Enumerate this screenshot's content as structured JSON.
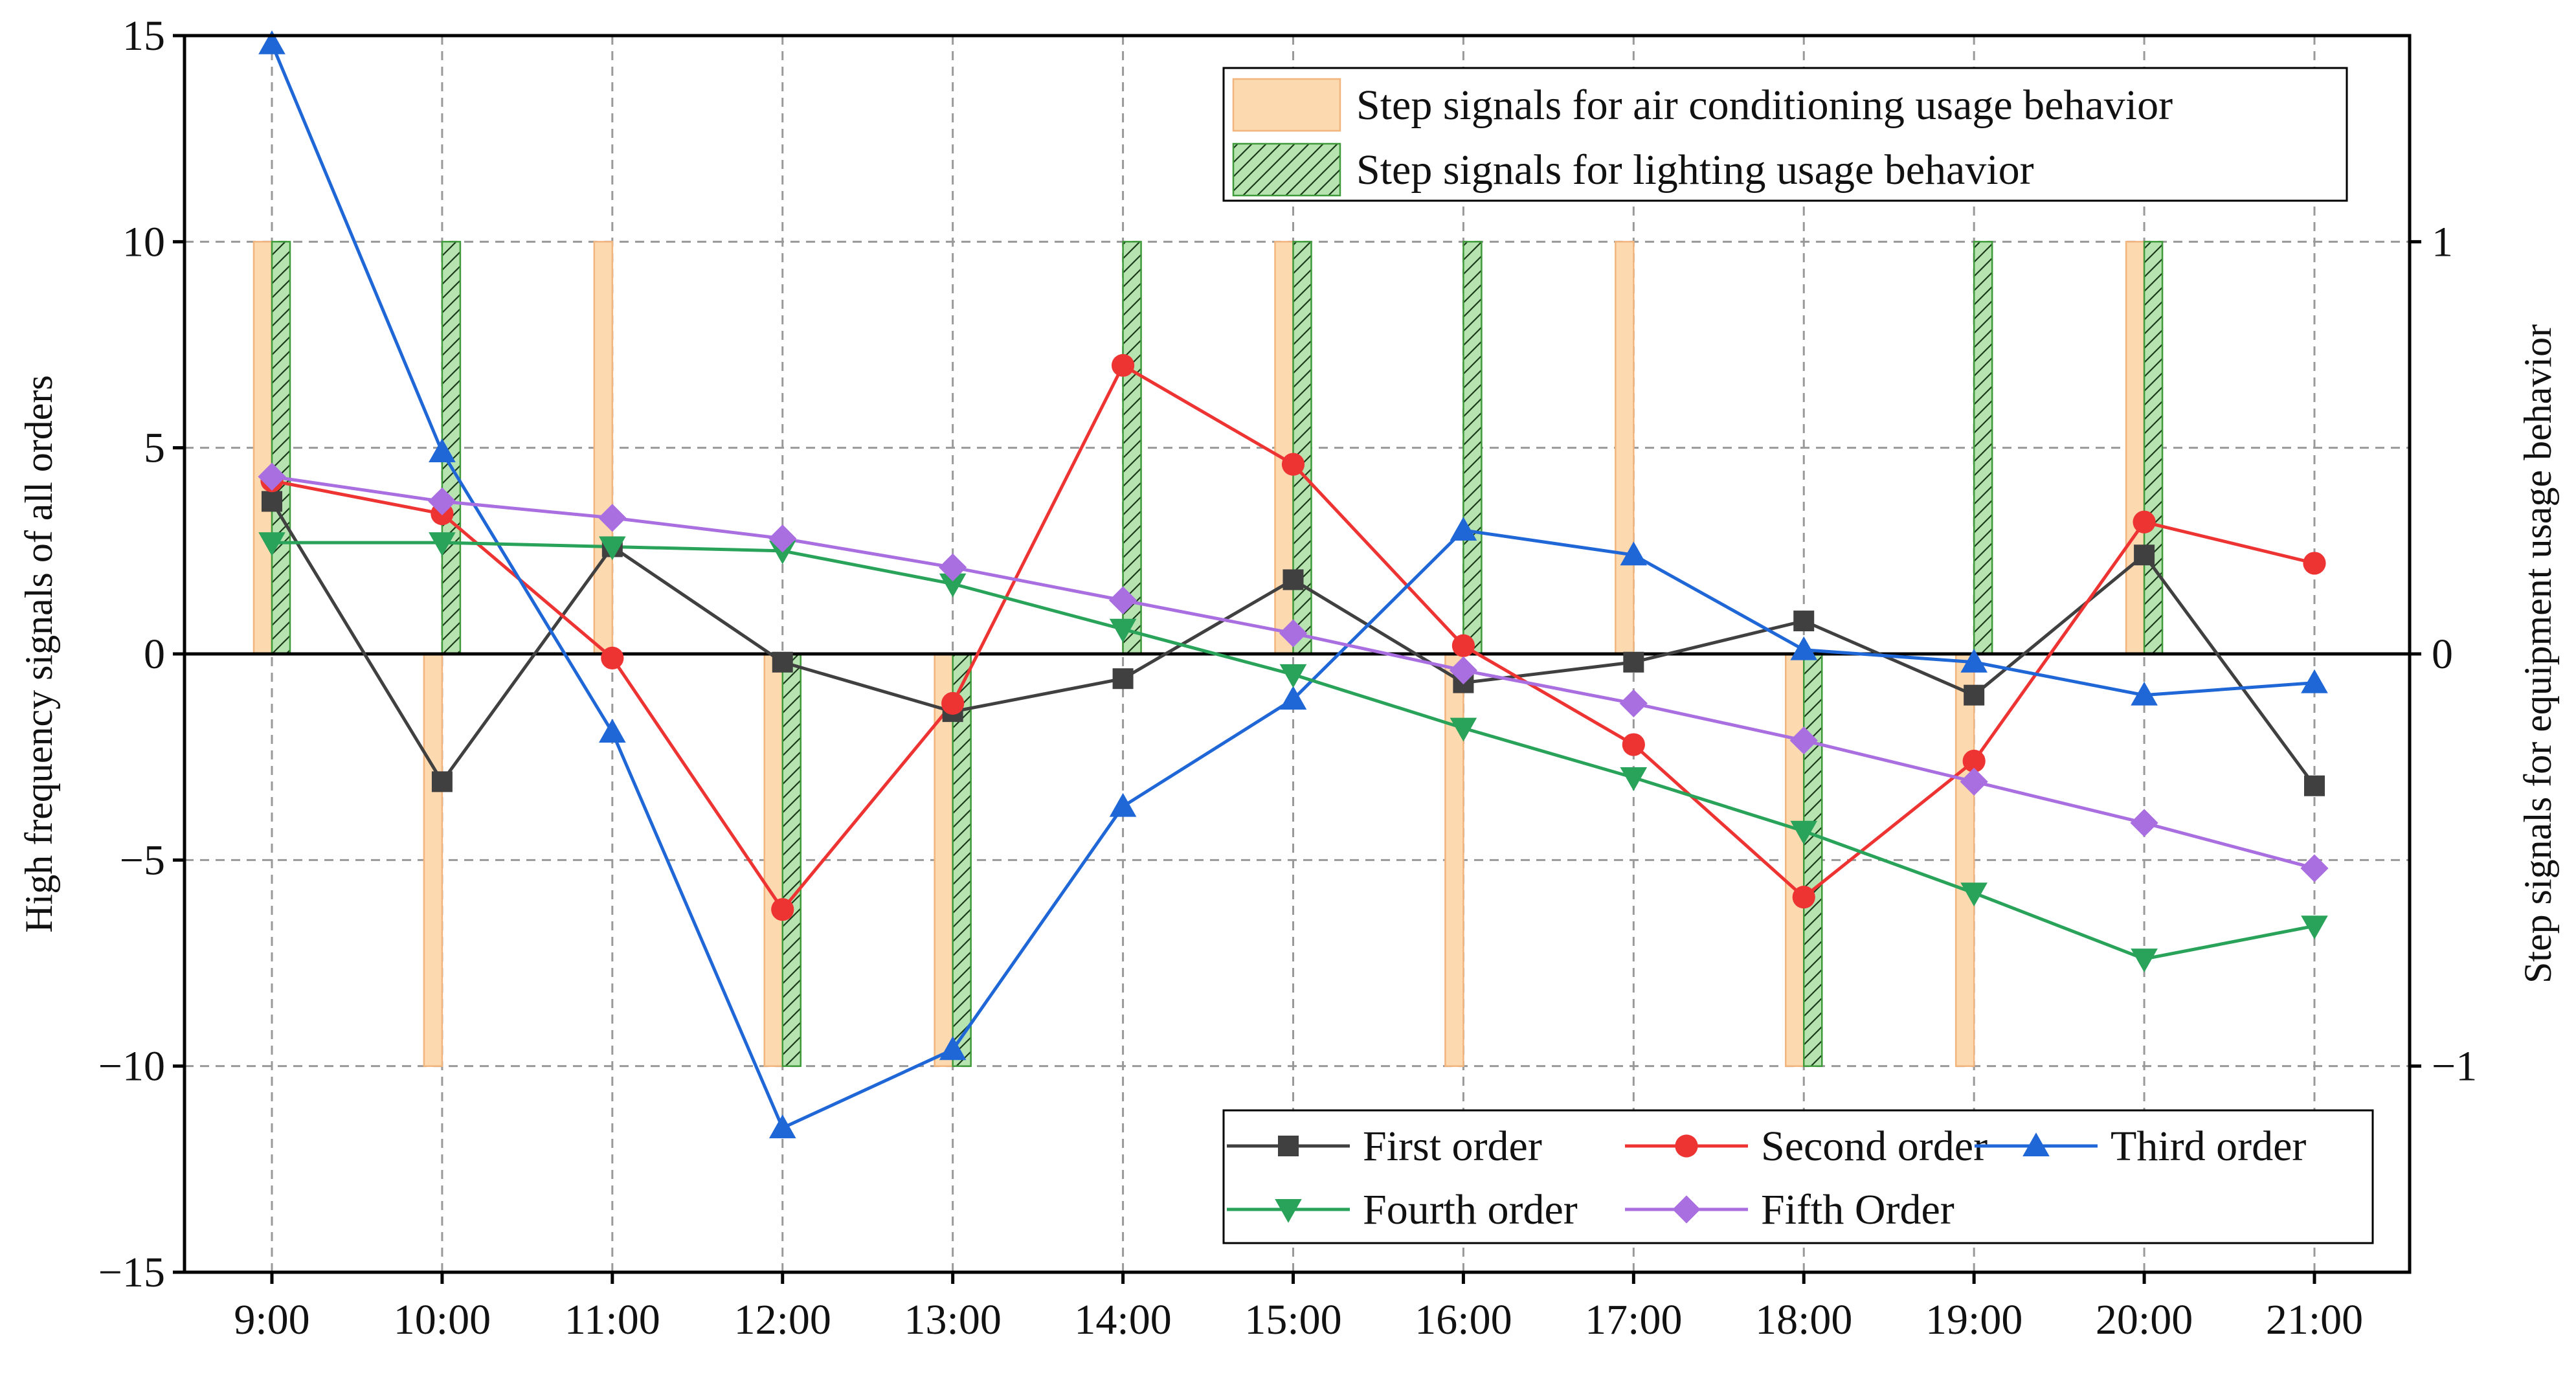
{
  "chart_data": {
    "type": "line",
    "x": [
      "9:00",
      "10:00",
      "11:00",
      "12:00",
      "13:00",
      "14:00",
      "15:00",
      "16:00",
      "17:00",
      "18:00",
      "19:00",
      "20:00",
      "21:00"
    ],
    "ylabel": "High frequency signals of all orders",
    "y2label": "Step signals for equipment usage behavior",
    "ylim": [
      -15,
      15
    ],
    "yticks": [
      15,
      10,
      5,
      0,
      -5,
      -10,
      -15
    ],
    "ytick_labels": [
      "15",
      "10",
      "5",
      "0",
      "−5",
      "−10",
      "−15"
    ],
    "y2lim": [
      -1.5,
      1.5
    ],
    "y2ticks": [
      1,
      0,
      -1
    ],
    "y2tick_labels": [
      "1",
      "0",
      "−1"
    ],
    "grid": true,
    "series": [
      {
        "name": "First order",
        "color": "#404040",
        "marker": "square",
        "values": [
          3.7,
          -3.1,
          2.6,
          -0.2,
          -1.4,
          -0.6,
          1.8,
          -0.7,
          -0.2,
          0.8,
          -1.0,
          2.4,
          -3.2
        ]
      },
      {
        "name": "Second order",
        "color": "#ee3333",
        "marker": "circle",
        "values": [
          4.2,
          3.4,
          -0.1,
          -6.2,
          -1.2,
          7.0,
          4.6,
          0.2,
          -2.2,
          -5.9,
          -2.6,
          3.2,
          2.2
        ]
      },
      {
        "name": "Third order",
        "color": "#1f66d6",
        "marker": "triangle-up",
        "values": [
          14.8,
          4.9,
          -1.9,
          -11.5,
          -9.6,
          -3.7,
          -1.1,
          3.0,
          2.4,
          0.1,
          -0.2,
          -1.0,
          -0.7
        ]
      },
      {
        "name": "Fourth order",
        "color": "#2aa35a",
        "marker": "triangle-down",
        "values": [
          2.7,
          2.7,
          2.6,
          2.5,
          1.7,
          0.6,
          -0.5,
          -1.8,
          -3.0,
          -4.3,
          -5.8,
          -7.4,
          -6.6
        ]
      },
      {
        "name": "Fifth Order",
        "color": "#a96ee0",
        "marker": "diamond",
        "values": [
          4.3,
          3.7,
          3.3,
          2.8,
          2.1,
          1.3,
          0.5,
          -0.4,
          -1.2,
          -2.1,
          -3.1,
          -4.1,
          -5.2
        ]
      }
    ],
    "step_series": [
      {
        "name": "Step signals for air conditioning usage behavior",
        "fill": "#fdd9b0",
        "stroke": "#f2b57d",
        "hatch": false,
        "values": [
          1,
          -1,
          1,
          -1,
          -1,
          0,
          1,
          -1,
          1,
          -1,
          -1,
          1,
          0
        ]
      },
      {
        "name": "Step signals for lighting usage behavior",
        "fill": "#b6e3b0",
        "stroke": "#3f9a3a",
        "hatch": true,
        "values": [
          1,
          1,
          0,
          -1,
          -1,
          1,
          1,
          1,
          0,
          -1,
          1,
          1,
          0
        ]
      }
    ],
    "legend_top": [
      "Step signals for air conditioning usage behavior",
      "Step signals for lighting usage behavior"
    ],
    "legend_bottom": [
      "First order",
      "Second order",
      "Third order",
      "Fourth order",
      "Fifth Order"
    ],
    "legend_top_placement": "top-right",
    "legend_bottom_placement": "bottom-right"
  }
}
